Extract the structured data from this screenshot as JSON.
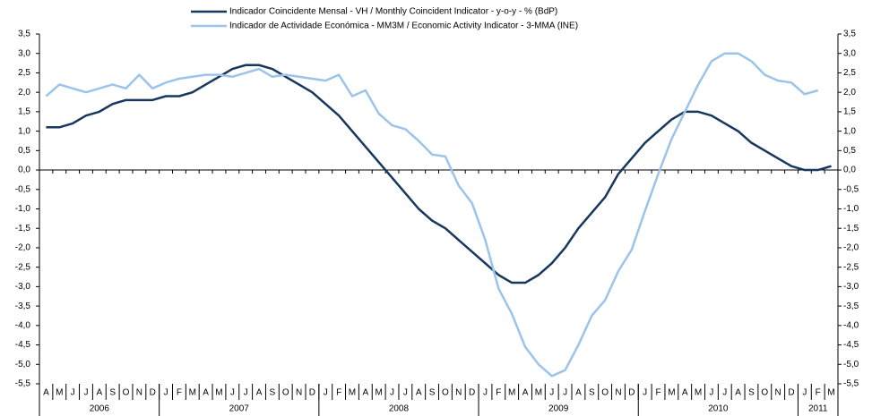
{
  "chart_data": {
    "type": "line",
    "categories": [
      "A",
      "M",
      "J",
      "J",
      "A",
      "S",
      "O",
      "N",
      "D",
      "J",
      "F",
      "M",
      "A",
      "M",
      "J",
      "J",
      "A",
      "S",
      "O",
      "N",
      "D",
      "J",
      "F",
      "M",
      "A",
      "M",
      "J",
      "J",
      "A",
      "S",
      "O",
      "N",
      "D",
      "J",
      "F",
      "M",
      "A",
      "M",
      "J",
      "J",
      "A",
      "S",
      "O",
      "N",
      "D",
      "J",
      "F",
      "M",
      "A",
      "M",
      "J",
      "J",
      "A",
      "S",
      "O",
      "N",
      "D",
      "J",
      "F",
      "M"
    ],
    "x_groups": [
      {
        "label": "2006",
        "count": 9
      },
      {
        "label": "2007",
        "count": 12
      },
      {
        "label": "2008",
        "count": 12
      },
      {
        "label": "2009",
        "count": 12
      },
      {
        "label": "2010",
        "count": 12
      },
      {
        "label": "2011",
        "count": 3
      }
    ],
    "series": [
      {
        "name": "Indicador Coincidente Mensal - VH / Monthly Coincident Indicator - y-o-y - % (BdP)",
        "color": "#17375e",
        "values": [
          1.1,
          1.1,
          1.2,
          1.4,
          1.5,
          1.7,
          1.8,
          1.8,
          1.8,
          1.9,
          1.9,
          2.0,
          2.2,
          2.4,
          2.6,
          2.7,
          2.7,
          2.6,
          2.4,
          2.2,
          2.0,
          1.7,
          1.4,
          1.0,
          0.6,
          0.2,
          -0.2,
          -0.6,
          -1.0,
          -1.3,
          -1.5,
          -1.8,
          -2.1,
          -2.4,
          -2.7,
          -2.9,
          -2.9,
          -2.7,
          -2.4,
          -2.0,
          -1.5,
          -1.1,
          -0.7,
          -0.1,
          0.3,
          0.7,
          1.0,
          1.3,
          1.5,
          1.5,
          1.4,
          1.2,
          1.0,
          0.7,
          0.5,
          0.3,
          0.1,
          0.0,
          0.0,
          0.1
        ]
      },
      {
        "name": "Indicador de Actividade Económica - MM3M / Economic Activity Indicator - 3-MMA (INE)",
        "color": "#9cc3ea",
        "values": [
          1.9,
          2.2,
          2.1,
          2.0,
          2.1,
          2.2,
          2.1,
          2.45,
          2.1,
          2.25,
          2.35,
          2.4,
          2.45,
          2.45,
          2.4,
          2.5,
          2.6,
          2.4,
          2.45,
          2.4,
          2.35,
          2.3,
          2.45,
          1.9,
          2.05,
          1.45,
          1.15,
          1.05,
          0.75,
          0.4,
          0.35,
          -0.4,
          -0.85,
          -1.8,
          -3.05,
          -3.7,
          -4.55,
          -5.0,
          -5.3,
          -5.15,
          -4.5,
          -3.75,
          -3.35,
          -2.6,
          -2.05,
          -1.05,
          -0.1,
          0.8,
          1.5,
          2.2,
          2.8,
          3.0,
          3.0,
          2.8,
          2.45,
          2.3,
          2.25,
          1.95,
          2.05,
          null
        ]
      }
    ],
    "ylim": [
      -5.5,
      3.5
    ],
    "yticks": [
      {
        "value": 3.5,
        "label": "3,5"
      },
      {
        "value": 3.0,
        "label": "3,0"
      },
      {
        "value": 2.5,
        "label": "2,5"
      },
      {
        "value": 2.0,
        "label": "2,0"
      },
      {
        "value": 1.5,
        "label": "1,5"
      },
      {
        "value": 1.0,
        "label": "1,0"
      },
      {
        "value": 0.5,
        "label": "0,5"
      },
      {
        "value": 0,
        "label": "0,0"
      },
      {
        "value": -0.5,
        "label": "-0,5"
      },
      {
        "value": -1.0,
        "label": "-1,0"
      },
      {
        "value": -1.5,
        "label": "-1,5"
      },
      {
        "value": -2.0,
        "label": "-2,0"
      },
      {
        "value": -2.5,
        "label": "-2,5"
      },
      {
        "value": -3.0,
        "label": "-3,0"
      },
      {
        "value": -3.5,
        "label": "-3,5"
      },
      {
        "value": -4.0,
        "label": "-4,0"
      },
      {
        "value": -4.5,
        "label": "-4,5"
      },
      {
        "value": -5.0,
        "label": "-5,0"
      },
      {
        "value": -5.5,
        "label": "-5,5"
      }
    ],
    "y2lim": [
      -5.5,
      3.5
    ],
    "y2ticks": [
      {
        "value": 3.5,
        "label": "3,5"
      },
      {
        "value": 3.0,
        "label": "3,0"
      },
      {
        "value": 2.5,
        "label": "2,5"
      },
      {
        "value": 2.0,
        "label": "2,0"
      },
      {
        "value": 1.5,
        "label": "1,5"
      },
      {
        "value": 1.0,
        "label": "1,0"
      },
      {
        "value": 0.5,
        "label": "0,5"
      },
      {
        "value": 0,
        "label": "0,0"
      },
      {
        "value": -0.5,
        "label": "-0,5"
      },
      {
        "value": -1.0,
        "label": "-1,0"
      },
      {
        "value": -1.5,
        "label": "-1,5"
      },
      {
        "value": -2.0,
        "label": "-2,0"
      },
      {
        "value": -2.5,
        "label": "-2,5"
      },
      {
        "value": -3.0,
        "label": "-3,0"
      },
      {
        "value": -3.5,
        "label": "-3,5"
      },
      {
        "value": -4.0,
        "label": "-4,0"
      },
      {
        "value": -4.5,
        "label": "-4,5"
      },
      {
        "value": -5.0,
        "label": "-5,0"
      },
      {
        "value": -5.5,
        "label": "-5,5"
      }
    ],
    "grid": false,
    "legend": "top"
  }
}
